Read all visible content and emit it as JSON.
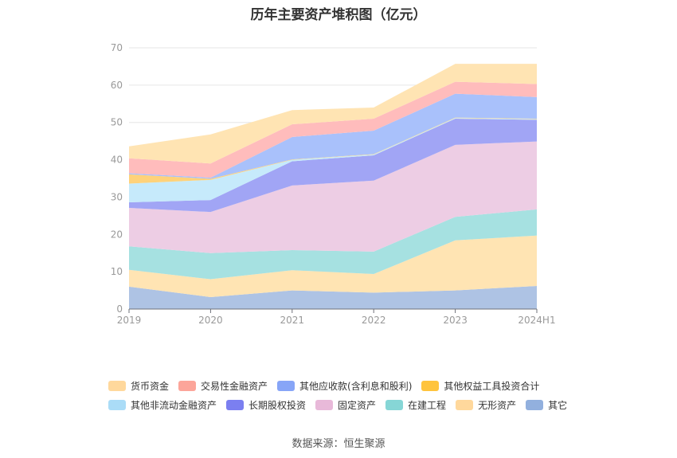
{
  "chart_data": {
    "type": "area",
    "stacked": true,
    "title": "历年主要资产堆积图（亿元）",
    "categories": [
      "2019",
      "2020",
      "2021",
      "2022",
      "2023",
      "2024H1"
    ],
    "ylim": [
      0,
      70
    ],
    "yticks": [
      0,
      10,
      20,
      30,
      40,
      50,
      60,
      70
    ],
    "grid": true,
    "legend_position": "bottom",
    "legend_rows": [
      [
        "货币资金",
        "交易性金融资产",
        "其他应收款(含利息和股利)",
        "其他权益工具投资合计"
      ],
      [
        "其他非流动金融资产",
        "长期股权投资",
        "固定资产",
        "在建工程",
        "无形资产",
        "其它"
      ]
    ],
    "series": [
      {
        "name": "其它",
        "color": "#aec3e4",
        "legend_color": "#92b0de",
        "values": [
          6.0,
          3.2,
          5.0,
          4.4,
          5.0,
          6.2
        ]
      },
      {
        "name": "无形资产",
        "color": "#ffe4b3",
        "legend_color": "#ffd89c",
        "values": [
          4.5,
          4.8,
          5.4,
          5.0,
          13.4,
          13.5
        ]
      },
      {
        "name": "在建工程",
        "color": "#a6e1e1",
        "legend_color": "#86d6d6",
        "values": [
          6.3,
          7.0,
          5.4,
          6.0,
          6.3,
          7.0
        ]
      },
      {
        "name": "固定资产",
        "color": "#edcde4",
        "legend_color": "#e8b9d9",
        "values": [
          10.3,
          11.0,
          17.3,
          19.0,
          19.3,
          18.2
        ]
      },
      {
        "name": "长期股权投资",
        "color": "#a1a5f5",
        "legend_color": "#7b7ff0",
        "values": [
          1.5,
          3.2,
          6.5,
          6.8,
          7.0,
          5.8
        ]
      },
      {
        "name": "其他非流动金融资产",
        "color": "#c6eafb",
        "legend_color": "#aadcf7",
        "values": [
          5.0,
          5.4,
          0.4,
          0.2,
          0.2,
          0.2
        ]
      },
      {
        "name": "其他权益工具投资合计",
        "color": "#ffd27a",
        "legend_color": "#ffc43d",
        "values": [
          2.5,
          0.3,
          0.1,
          0.1,
          0.1,
          0.1
        ]
      },
      {
        "name": "其他应收款(含利息和股利)",
        "color": "#a9c1fb",
        "legend_color": "#87a5f7",
        "values": [
          0.3,
          0.3,
          6.0,
          6.3,
          6.4,
          5.8
        ]
      },
      {
        "name": "交易性金融资产",
        "color": "#ffbcbc",
        "legend_color": "#fca59a",
        "values": [
          4.0,
          3.8,
          3.4,
          3.2,
          3.2,
          3.5
        ]
      },
      {
        "name": "货币资金",
        "color": "#ffe4b3",
        "legend_color": "#ffd89c",
        "values": [
          3.2,
          7.8,
          3.8,
          3.0,
          4.8,
          5.4
        ]
      }
    ]
  },
  "source": "数据来源：恒生聚源"
}
